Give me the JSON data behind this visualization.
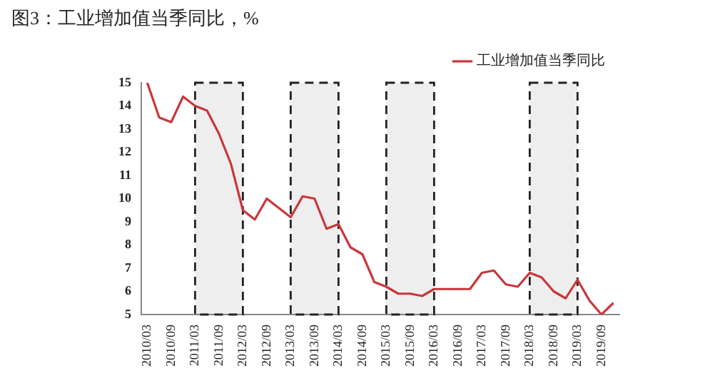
{
  "chart_data": {
    "type": "line",
    "title": "图3：工业增加值当季同比，%",
    "categories": [
      "2010/03",
      null,
      "2010/09",
      null,
      "2011/03",
      null,
      "2011/09",
      null,
      "2012/03",
      null,
      "2012/09",
      null,
      "2013/03",
      null,
      "2013/09",
      null,
      "2014/03",
      null,
      "2014/09",
      null,
      "2015/03",
      null,
      "2015/09",
      null,
      "2016/03",
      null,
      "2016/09",
      null,
      "2017/03",
      null,
      "2017/09",
      null,
      "2018/03",
      null,
      "2018/09",
      null,
      "2019/03",
      null,
      "2019/09",
      null
    ],
    "series": [
      {
        "name": "工业增加值当季同比",
        "color": "#c8373a",
        "values": [
          15.0,
          13.5,
          13.3,
          14.4,
          14.0,
          13.8,
          12.8,
          11.5,
          9.5,
          9.1,
          10.0,
          9.6,
          9.2,
          10.1,
          10.0,
          8.7,
          8.9,
          7.9,
          7.6,
          6.4,
          6.2,
          5.9,
          5.9,
          5.8,
          6.1,
          6.1,
          6.1,
          6.1,
          6.8,
          6.9,
          6.3,
          6.2,
          6.8,
          6.6,
          6.0,
          5.7,
          6.5,
          5.6,
          5.0,
          5.5
        ]
      }
    ],
    "ylim": [
      5,
      15
    ],
    "yticks": [
      5,
      6,
      7,
      8,
      9,
      10,
      11,
      12,
      13,
      14,
      15
    ],
    "bands": [
      {
        "axis": "x",
        "from": "2011/03",
        "to": "2012/03",
        "color": "#222222"
      },
      {
        "axis": "x",
        "from": "2013/03",
        "to": "2014/03",
        "color": "#222222"
      },
      {
        "axis": "x",
        "from": "2015/03",
        "to": "2016/03",
        "color": "#222222"
      },
      {
        "axis": "x",
        "from": "2018/03",
        "to": "2019/03",
        "color": "#222222"
      }
    ],
    "grid": false,
    "legend": "top right",
    "marker": "none",
    "line_style": "solid"
  }
}
